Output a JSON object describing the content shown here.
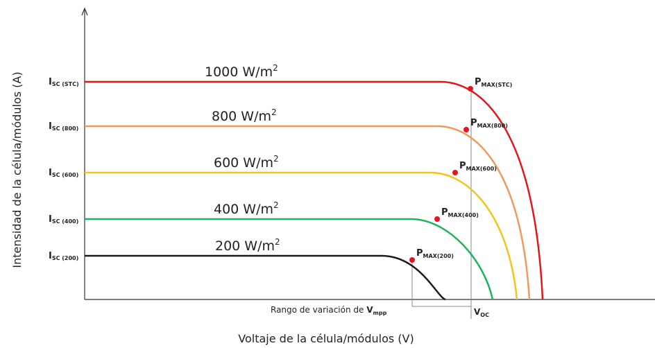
{
  "axes": {
    "y_label": "Intensidad de la célula/módulos (A)",
    "x_label": "Voltaje de la célula/módulos (V)"
  },
  "range_label": {
    "text": "Rango de variación de ",
    "base": "V",
    "sub": "mpp"
  },
  "voc_label": {
    "base": "V",
    "sub": "OC"
  },
  "curves": [
    {
      "irradiance": "1000 W/m",
      "exp": "2",
      "isc": {
        "base": "I",
        "sub": "SC (STC)"
      },
      "pmax": {
        "base": "P",
        "sub": "MAX(STC)"
      }
    },
    {
      "irradiance": "800 W/m",
      "exp": "2",
      "isc": {
        "base": "I",
        "sub": "SC (800)"
      },
      "pmax": {
        "base": "P",
        "sub": "MAX(800)"
      }
    },
    {
      "irradiance": "600 W/m",
      "exp": "2",
      "isc": {
        "base": "I",
        "sub": "SC (600)"
      },
      "pmax": {
        "base": "P",
        "sub": "MAX(600)"
      }
    },
    {
      "irradiance": "400 W/m",
      "exp": "2",
      "isc": {
        "base": "I",
        "sub": "SC (400)"
      },
      "pmax": {
        "base": "P",
        "sub": "MAX(400)"
      }
    },
    {
      "irradiance": "200 W/m",
      "exp": "2",
      "isc": {
        "base": "I",
        "sub": "SC (200)"
      },
      "pmax": {
        "base": "P",
        "sub": "MAX(200)"
      }
    }
  ]
}
